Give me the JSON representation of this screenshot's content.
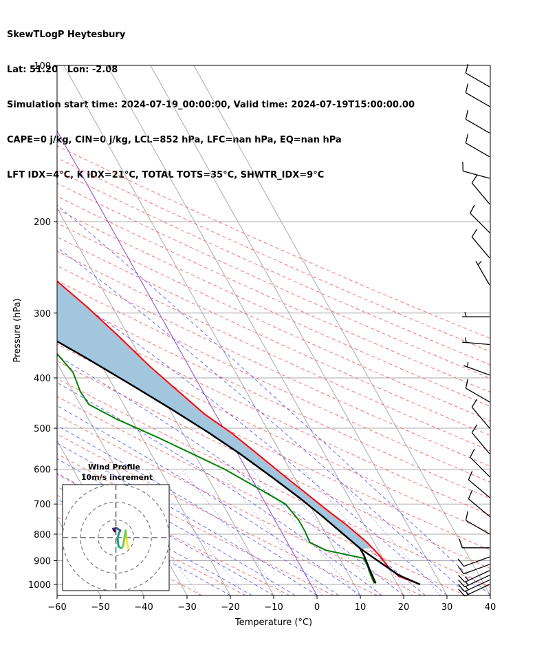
{
  "header": {
    "line1": "SkewTLogP Heytesbury",
    "line2": "Lat: 51.20   Lon: -2.08",
    "line3": "Simulation start time: 2024-07-19_00:00:00, Valid time: 2024-07-19T15:00:00.00",
    "line4": "CAPE=0 j/kg, CIN=0 j/kg, LCL=852 hPa, LFC=nan hPa, EQ=nan hPa",
    "line5": "LFT IDX=4°C, K IDX=21°C, TOTAL TOTS=35°C, SHWTR_IDX=9°C"
  },
  "chart_data": {
    "type": "line",
    "xlabel": "Temperature (°C)",
    "ylabel": "Pressure (hPa)",
    "xlim": [
      -60,
      40
    ],
    "ylim": [
      1050,
      100
    ],
    "y_scale": "log",
    "skew_slope": 0.56,
    "x_ticks": [
      -60,
      -50,
      -40,
      -30,
      -20,
      -10,
      0,
      10,
      20,
      30,
      40
    ],
    "x_tick_labels": [
      "−60",
      "−50",
      "−40",
      "−30",
      "−20",
      "−10",
      "0",
      "10",
      "20",
      "30",
      "40"
    ],
    "y_ticks": [
      1000,
      900,
      800,
      700,
      600,
      500,
      400,
      300,
      200,
      100
    ],
    "y_tick_labels": [
      "1000",
      "900",
      "800",
      "700",
      "600",
      "500",
      "400",
      "300",
      "200",
      "100"
    ],
    "grid": true,
    "colors": {
      "temperature": "#ff0000",
      "dewpoint": "#008000",
      "parcel": "#000000",
      "cape_fill": "#a3c6df",
      "dry_adiabat": "#ff5555",
      "moist_adiabat": "#4444ff",
      "mixing_ratio": "#7777ff",
      "isotherm_grid": "#aaaaaa",
      "zero_isotherm": "#8844cc"
    },
    "series": [
      {
        "key": "temperature",
        "points": [
          [
            1000,
            25.2
          ],
          [
            965,
            21.4
          ],
          [
            930,
            20.2
          ],
          [
            880,
            19.6
          ],
          [
            830,
            18.4
          ],
          [
            770,
            16.0
          ],
          [
            720,
            13.4
          ],
          [
            670,
            10.8
          ],
          [
            620,
            8.0
          ],
          [
            560,
            4.5
          ],
          [
            510,
            1.2
          ],
          [
            470,
            -2.5
          ],
          [
            420,
            -6.0
          ],
          [
            380,
            -9.0
          ],
          [
            330,
            -12.5
          ],
          [
            290,
            -16.0
          ],
          [
            260,
            -19.5
          ],
          [
            240,
            -22.5
          ],
          [
            215,
            -26.0
          ],
          [
            200,
            -27.5
          ],
          [
            190,
            -29.5
          ],
          [
            180,
            -26.5
          ],
          [
            165,
            -23.5
          ],
          [
            155,
            -22.0
          ],
          [
            145,
            -21.0
          ],
          [
            135,
            -20.5
          ],
          [
            125,
            -21.5
          ],
          [
            115,
            -22.0
          ],
          [
            105,
            -22.7
          ],
          [
            100,
            -23.2
          ]
        ]
      },
      {
        "key": "dewpoint",
        "points": [
          [
            995,
            14.8
          ],
          [
            960,
            15.0
          ],
          [
            920,
            15.5
          ],
          [
            890,
            15.5
          ],
          [
            860,
            8.0
          ],
          [
            830,
            5.2
          ],
          [
            790,
            5.5
          ],
          [
            750,
            5.5
          ],
          [
            700,
            4.5
          ],
          [
            650,
            0.0
          ],
          [
            600,
            -5.0
          ],
          [
            560,
            -10.5
          ],
          [
            520,
            -16.5
          ],
          [
            480,
            -23.5
          ],
          [
            450,
            -28.0
          ],
          [
            425,
            -28.3
          ],
          [
            390,
            -27.5
          ],
          [
            355,
            -29.0
          ],
          [
            330,
            -31.5
          ],
          [
            310,
            -31.5
          ],
          [
            290,
            -32.5
          ],
          [
            265,
            -33.0
          ],
          [
            235,
            -32.0
          ],
          [
            205,
            -36.0
          ],
          [
            190,
            -37.5
          ],
          [
            175,
            -37.0
          ],
          [
            160,
            -37.0
          ],
          [
            148,
            -40.5
          ],
          [
            135,
            -50.0
          ],
          [
            120,
            -51.0
          ],
          [
            110,
            -50.0
          ],
          [
            100,
            -48.0
          ]
        ]
      },
      {
        "key": "parcel",
        "points": [
          [
            995,
            15.1
          ],
          [
            935,
            15.5
          ],
          [
            880,
            16.0
          ],
          [
            852,
            16.0
          ],
          [
            800,
            14.0
          ],
          [
            740,
            11.5
          ],
          [
            680,
            8.5
          ],
          [
            620,
            4.8
          ],
          [
            560,
            0.5
          ],
          [
            510,
            -4.0
          ],
          [
            460,
            -9.5
          ],
          [
            410,
            -16.0
          ],
          [
            370,
            -22.0
          ],
          [
            330,
            -29.0
          ],
          [
            290,
            -37.0
          ],
          [
            260,
            -44.0
          ],
          [
            230,
            -52.0
          ],
          [
            205,
            -60.0
          ],
          [
            180,
            -69.0
          ],
          [
            160,
            -77.0
          ],
          [
            140,
            -86.0
          ],
          [
            120,
            -96.0
          ],
          [
            100,
            -108.0
          ]
        ]
      }
    ],
    "surface_parcel_path": [
      [
        1000,
        25.2
      ],
      [
        960,
        21.5
      ],
      [
        852,
        16.0
      ]
    ],
    "barbs": [
      {
        "p": 1000,
        "speed": 15,
        "dir": 245
      },
      {
        "p": 980,
        "speed": 15,
        "dir": 245
      },
      {
        "p": 960,
        "speed": 15,
        "dir": 245
      },
      {
        "p": 940,
        "speed": 15,
        "dir": 245
      },
      {
        "p": 915,
        "speed": 10,
        "dir": 250
      },
      {
        "p": 885,
        "speed": 10,
        "dir": 250
      },
      {
        "p": 850,
        "speed": 10,
        "dir": 270
      },
      {
        "p": 800,
        "speed": 10,
        "dir": 300
      },
      {
        "p": 740,
        "speed": 10,
        "dir": 310
      },
      {
        "p": 680,
        "speed": 10,
        "dir": 310
      },
      {
        "p": 620,
        "speed": 10,
        "dir": 315
      },
      {
        "p": 560,
        "speed": 10,
        "dir": 320
      },
      {
        "p": 500,
        "speed": 10,
        "dir": 320
      },
      {
        "p": 445,
        "speed": 10,
        "dir": 300
      },
      {
        "p": 395,
        "speed": 5,
        "dir": 290
      },
      {
        "p": 345,
        "speed": 5,
        "dir": 275
      },
      {
        "p": 305,
        "speed": 5,
        "dir": 270
      },
      {
        "p": 265,
        "speed": 5,
        "dir": 330
      },
      {
        "p": 235,
        "speed": 10,
        "dir": 320
      },
      {
        "p": 210,
        "speed": 10,
        "dir": 315
      },
      {
        "p": 185,
        "speed": 10,
        "dir": 320
      },
      {
        "p": 165,
        "speed": 10,
        "dir": 285
      },
      {
        "p": 150,
        "speed": 10,
        "dir": 300
      },
      {
        "p": 135,
        "speed": 10,
        "dir": 300
      },
      {
        "p": 120,
        "speed": 10,
        "dir": 300
      },
      {
        "p": 110,
        "speed": 10,
        "dir": 300
      }
    ],
    "hodograph": {
      "title_line1": "Wind Profile",
      "title_line2": "10m/s increment",
      "rings": [
        10,
        20,
        30
      ],
      "range": 30,
      "points": [
        [
          7.0,
          -6.0
        ],
        [
          6.5,
          -4.0
        ],
        [
          6.0,
          0.0
        ],
        [
          5.5,
          4.0
        ],
        [
          4.0,
          -5.0
        ],
        [
          3.0,
          -6.0
        ],
        [
          1.5,
          -5.0
        ],
        [
          1.0,
          -1.0
        ],
        [
          1.5,
          2.0
        ],
        [
          2.5,
          4.0
        ],
        [
          1.0,
          5.0
        ],
        [
          0.0,
          5.5
        ],
        [
          -0.5,
          5.0
        ],
        [
          -1.5,
          5.0
        ],
        [
          -1.0,
          4.0
        ],
        [
          -0.5,
          3.5
        ]
      ]
    }
  }
}
